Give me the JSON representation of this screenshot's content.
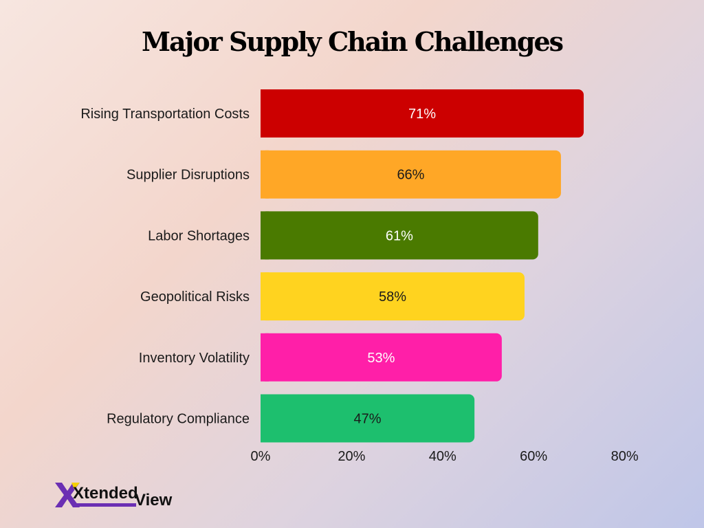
{
  "chart_data": {
    "type": "bar",
    "orientation": "horizontal",
    "title": "Major Supply Chain Challenges",
    "categories": [
      "Rising Transportation Costs",
      "Supplier Disruptions",
      "Labor Shortages",
      "Geopolitical Risks",
      "Inventory Volatility",
      "Regulatory Compliance"
    ],
    "values": [
      71,
      66,
      61,
      58,
      53,
      47
    ],
    "value_labels": [
      "71%",
      "66%",
      "61%",
      "58%",
      "53%",
      "47%"
    ],
    "bar_colors": [
      "#cc0000",
      "#ffa726",
      "#4a7a00",
      "#ffd31f",
      "#ff1fa8",
      "#1dbf6e"
    ],
    "label_colors": [
      "#ffffff",
      "#1a1a1a",
      "#ffffff",
      "#1a1a1a",
      "#ffffff",
      "#1a1a1a"
    ],
    "xlim": [
      0,
      80
    ],
    "ticks": [
      0,
      20,
      40,
      60,
      80
    ],
    "tick_labels": [
      "0%",
      "20%",
      "40%",
      "60%",
      "80%"
    ],
    "grid": false,
    "legend": "none"
  },
  "brand": {
    "logo_mark": "x-logo-icon",
    "word1": "Xtended",
    "word2": "View",
    "accent": "#6b2fb3"
  }
}
